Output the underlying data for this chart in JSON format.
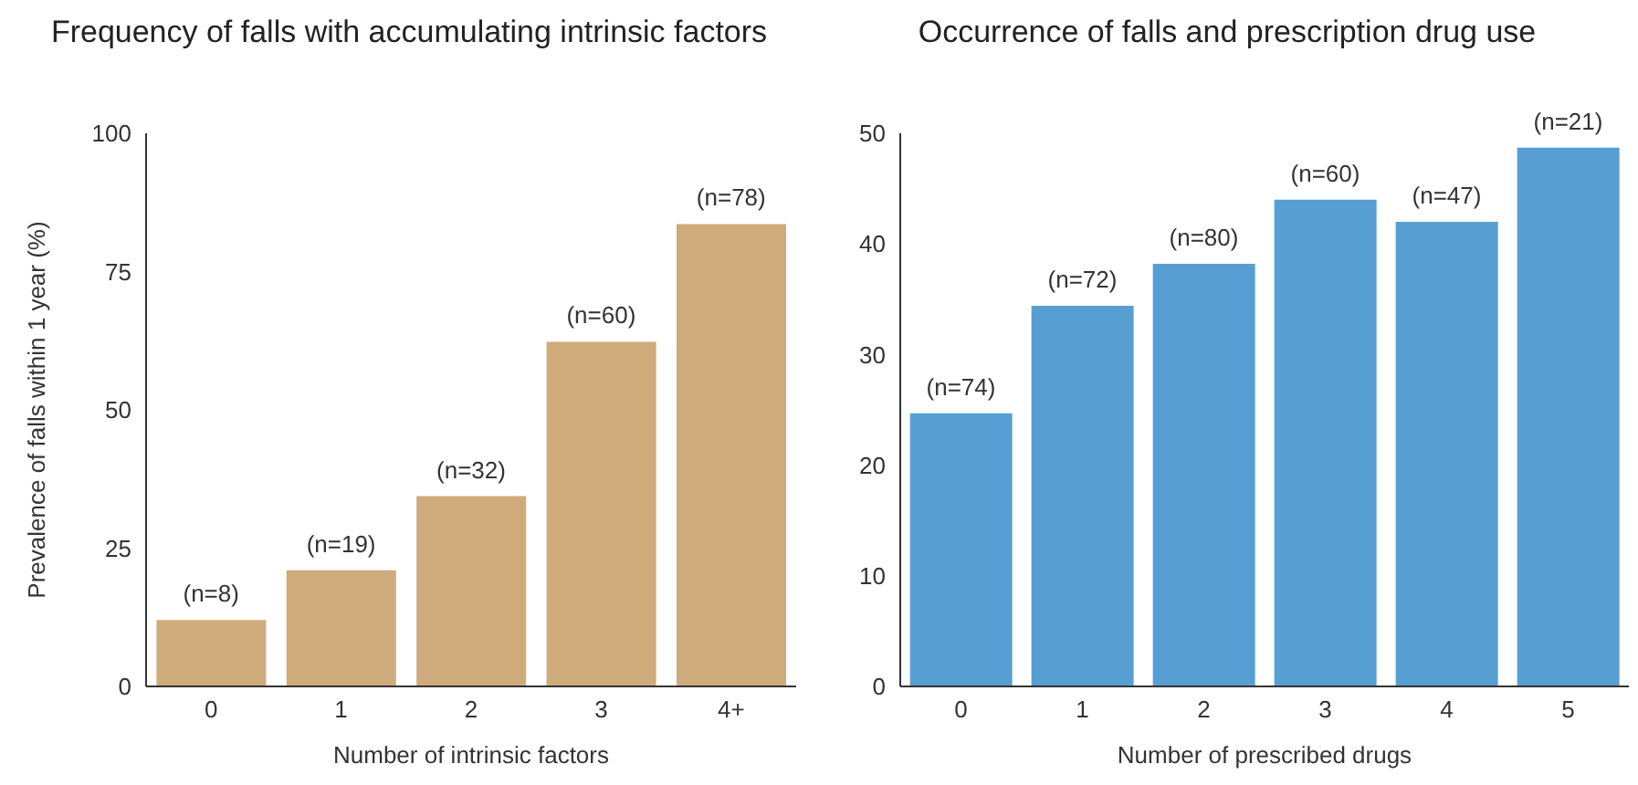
{
  "chart_data": [
    {
      "type": "bar",
      "title": "Frequency of falls with accumulating intrinsic factors",
      "xlabel": "Number of intrinsic factors",
      "ylabel": "Prevalence of falls within 1 year (%)",
      "categories": [
        "0",
        "1",
        "2",
        "3",
        "4+"
      ],
      "values": [
        12,
        21,
        34.4,
        62.3,
        83.6
      ],
      "annotations": [
        {
          "text": "(n=8)",
          "x": "0",
          "y": 12
        },
        {
          "text": "(n=19)",
          "x": "1",
          "y": 21
        },
        {
          "text": "(n=32)",
          "x": "2",
          "y": 34.4
        },
        {
          "text": "(n=60)",
          "x": "3",
          "y": 62.3
        },
        {
          "text": "(n=78)",
          "x": "4+",
          "y": 83.6
        }
      ],
      "color": "#cfaa7b",
      "ylim": [
        0,
        100
      ],
      "yticks": [
        0,
        25,
        50,
        75,
        100
      ],
      "grid": false,
      "legend": false
    },
    {
      "type": "bar",
      "title": "Occurrence of falls and prescription drug use",
      "xlabel": "Number of prescribed drugs",
      "categories": [
        "0",
        "1",
        "2",
        "3",
        "4",
        "5"
      ],
      "values": [
        24.7,
        34.4,
        38.2,
        44,
        42,
        48.7
      ],
      "annotations": [
        {
          "text": "(n=74)",
          "x": "0",
          "y": 24.7
        },
        {
          "text": "(n=72)",
          "x": "1",
          "y": 34.4
        },
        {
          "text": "(n=80)",
          "x": "2",
          "y": 38.2
        },
        {
          "text": "(n=60)",
          "x": "3",
          "y": 44
        },
        {
          "text": "(n=47)",
          "x": "4",
          "y": 42
        },
        {
          "text": "(n=21)",
          "x": "5",
          "y": 48.7
        }
      ],
      "color": "#579fd3",
      "ylim": [
        0,
        50
      ],
      "yticks": [
        0,
        10,
        20,
        30,
        40,
        50
      ],
      "grid": false,
      "legend": false
    }
  ]
}
